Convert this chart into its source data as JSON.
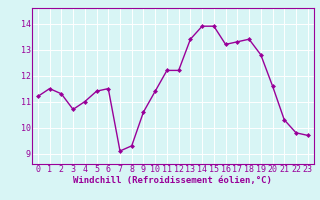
{
  "x": [
    0,
    1,
    2,
    3,
    4,
    5,
    6,
    7,
    8,
    9,
    10,
    11,
    12,
    13,
    14,
    15,
    16,
    17,
    18,
    19,
    20,
    21,
    22,
    23
  ],
  "y": [
    11.2,
    11.5,
    11.3,
    10.7,
    11.0,
    11.4,
    11.5,
    9.1,
    9.3,
    10.6,
    11.4,
    12.2,
    12.2,
    13.4,
    13.9,
    13.9,
    13.2,
    13.3,
    13.4,
    12.8,
    11.6,
    10.3,
    9.8,
    9.7
  ],
  "line_color": "#990099",
  "marker": "D",
  "marker_size": 2.0,
  "linewidth": 1.0,
  "xlabel": "Windchill (Refroidissement éolien,°C)",
  "xlabel_fontsize": 6.5,
  "xlabel_color": "#990099",
  "xtick_labels": [
    "0",
    "1",
    "2",
    "3",
    "4",
    "5",
    "6",
    "7",
    "8",
    "9",
    "10",
    "11",
    "12",
    "13",
    "14",
    "15",
    "16",
    "17",
    "18",
    "19",
    "20",
    "21",
    "22",
    "23"
  ],
  "ytick_labels": [
    "9",
    "10",
    "11",
    "12",
    "13",
    "14"
  ],
  "ytick_values": [
    9,
    10,
    11,
    12,
    13,
    14
  ],
  "ylim": [
    8.6,
    14.6
  ],
  "xlim": [
    -0.5,
    23.5
  ],
  "tick_color": "#990099",
  "tick_fontsize": 6.0,
  "background_color": "#d8f5f5",
  "grid_color": "#ffffff",
  "grid_linewidth": 0.7,
  "spine_color": "#990099",
  "spine_linewidth": 0.8
}
